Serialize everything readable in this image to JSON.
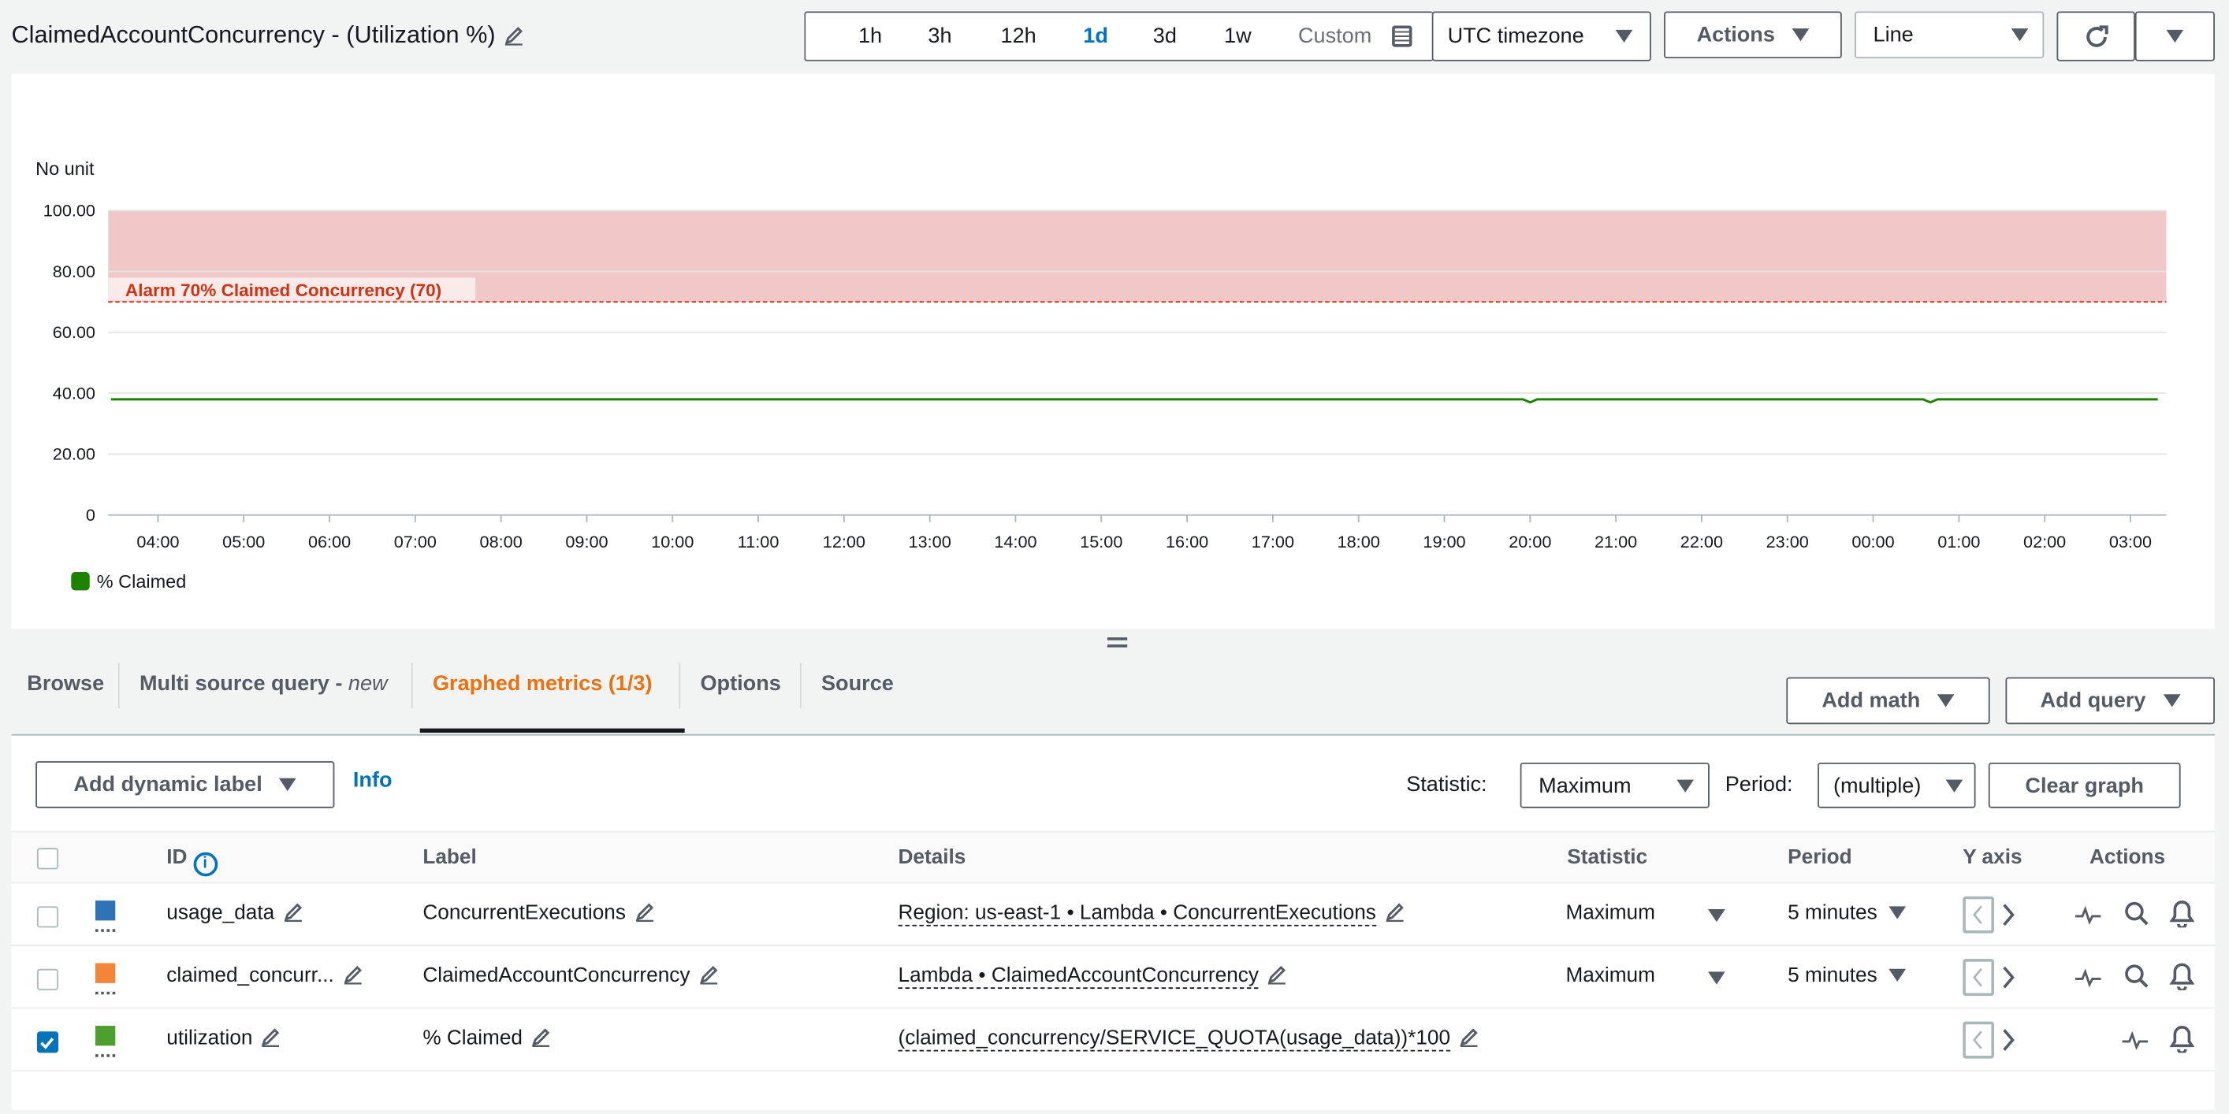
{
  "title": "ClaimedAccountConcurrency - (Utilization %)",
  "time_range": {
    "options": [
      "1h",
      "3h",
      "12h",
      "1d",
      "3d",
      "1w"
    ],
    "selected": "1d",
    "custom": "Custom"
  },
  "timezone": "UTC timezone",
  "actions": "Actions",
  "chart_type": "Line",
  "colors": {
    "accent": "#0073bb",
    "tab_active": "#ec7211",
    "series": "#1d8102",
    "alarm": "#d13212",
    "band": "#f0c8c8"
  },
  "chart_data": {
    "type": "line",
    "ylabel": "No unit",
    "ylim": [
      0,
      100
    ],
    "yticks": [
      "0",
      "20.00",
      "40.00",
      "60.00",
      "80.00",
      "100.00"
    ],
    "xticks": [
      "04:00",
      "05:00",
      "06:00",
      "07:00",
      "08:00",
      "09:00",
      "10:00",
      "11:00",
      "12:00",
      "13:00",
      "14:00",
      "15:00",
      "16:00",
      "17:00",
      "18:00",
      "19:00",
      "20:00",
      "21:00",
      "22:00",
      "23:00",
      "00:00",
      "01:00",
      "02:00",
      "03:00"
    ],
    "grid": true,
    "legend_placement": "bottom-left",
    "annotation": {
      "label": "Alarm 70% Claimed Concurrency (70)",
      "value": 70,
      "band": [
        70,
        100
      ]
    },
    "series": [
      {
        "name": "% Claimed",
        "x": [
          "03:30",
          "19:55",
          "20:00",
          "20:05",
          "00:35",
          "00:40",
          "00:45",
          "03:25"
        ],
        "y": [
          38,
          38,
          37,
          38,
          38,
          37,
          38,
          38
        ]
      }
    ]
  },
  "tabs": [
    {
      "label": "Browse"
    },
    {
      "label": "Multi source query - ",
      "suffix": "new"
    },
    {
      "label": "Graphed metrics (1/3)"
    },
    {
      "label": "Options"
    },
    {
      "label": "Source"
    }
  ],
  "add_math": "Add math",
  "add_query": "Add query",
  "toolbar": {
    "dynamic_label": "Add dynamic label",
    "info": "Info",
    "statistic_label": "Statistic:",
    "statistic": "Maximum",
    "period_label": "Period:",
    "period": "(multiple)",
    "clear": "Clear graph"
  },
  "table": {
    "headers": {
      "id": "ID",
      "label": "Label",
      "details": "Details",
      "statistic": "Statistic",
      "period": "Period",
      "yaxis": "Y axis",
      "actions": "Actions"
    },
    "rows": [
      {
        "color": "#2e73b8",
        "checked": false,
        "id": "usage_data",
        "label": "ConcurrentExecutions",
        "details": "Region: us-east-1 • Lambda • ConcurrentExecutions",
        "statistic": "Maximum",
        "period": "5 minutes"
      },
      {
        "color": "#f58536",
        "checked": false,
        "id": "claimed_concurr...",
        "label": "ClaimedAccountConcurrency",
        "details": "Lambda • ClaimedAccountConcurrency",
        "statistic": "Maximum",
        "period": "5 minutes"
      },
      {
        "color": "#4ea02e",
        "checked": true,
        "id": "utilization",
        "label": "% Claimed",
        "details": "(claimed_concurrency/SERVICE_QUOTA(usage_data))*100",
        "statistic": "",
        "period": ""
      }
    ]
  }
}
